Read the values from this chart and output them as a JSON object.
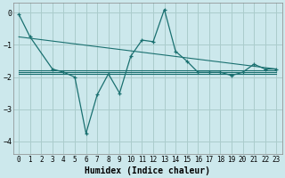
{
  "background_color": "#cce8ec",
  "grid_color": "#aacccc",
  "line_color": "#1a7070",
  "xlabel": "Humidex (Indice chaleur)",
  "xlim": [
    -0.5,
    23.5
  ],
  "ylim": [
    -4.4,
    0.3
  ],
  "yticks": [
    0,
    -1,
    -2,
    -3,
    -4
  ],
  "xticks": [
    0,
    1,
    2,
    3,
    4,
    5,
    6,
    7,
    8,
    9,
    10,
    11,
    12,
    13,
    14,
    15,
    16,
    17,
    18,
    19,
    20,
    21,
    22,
    23
  ],
  "series": [
    {
      "x": [
        0,
        1,
        3,
        4,
        5,
        6,
        7,
        8,
        9,
        10,
        11,
        12,
        13,
        14,
        15,
        16,
        17,
        18,
        19,
        20,
        21,
        22,
        23
      ],
      "y": [
        -0.05,
        -0.75,
        -1.75,
        -1.85,
        -2.0,
        -3.75,
        -2.55,
        -1.9,
        -2.5,
        -1.35,
        -0.85,
        -0.9,
        0.1,
        -1.2,
        -1.5,
        -1.85,
        -1.85,
        -1.85,
        -1.95,
        -1.85,
        -1.6,
        -1.75,
        -1.75
      ],
      "marker": true
    },
    {
      "x": [
        0,
        23
      ],
      "y": [
        -0.75,
        -1.75
      ],
      "marker": false
    },
    {
      "x": [
        0,
        23
      ],
      "y": [
        -1.8,
        -1.8
      ],
      "marker": false
    },
    {
      "x": [
        0,
        23
      ],
      "y": [
        -1.85,
        -1.85
      ],
      "marker": false
    },
    {
      "x": [
        0,
        23
      ],
      "y": [
        -1.9,
        -1.9
      ],
      "marker": false
    }
  ],
  "xlabel_fontsize": 7,
  "tick_fontsize": 5.5,
  "ytick_fontsize": 6
}
